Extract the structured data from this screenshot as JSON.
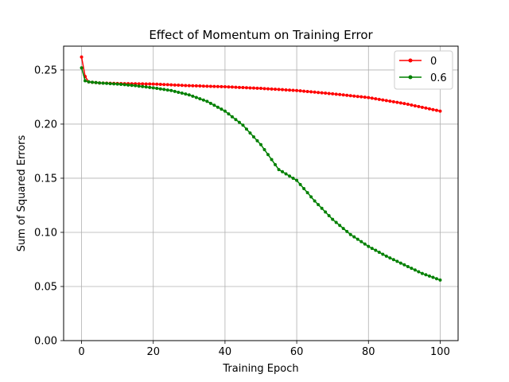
{
  "chart_data": {
    "type": "line",
    "title": "Effect of Momentum on Training Error",
    "xlabel": "Training Epoch",
    "ylabel": "Sum of Squared Errors",
    "xlim": [
      -5,
      105
    ],
    "ylim": [
      0.0,
      0.272
    ],
    "xticks": [
      0,
      20,
      40,
      60,
      80,
      100
    ],
    "xtick_labels": [
      "0",
      "20",
      "40",
      "60",
      "80",
      "100"
    ],
    "yticks": [
      0.0,
      0.05,
      0.1,
      0.15,
      0.2,
      0.25
    ],
    "ytick_labels": [
      "0.00",
      "0.05",
      "0.10",
      "0.15",
      "0.20",
      "0.25"
    ],
    "grid": true,
    "legend_position": "top-right",
    "series": [
      {
        "name": "0",
        "color": "#ff0000",
        "anchors": [
          [
            0,
            0.262
          ],
          [
            1,
            0.244
          ],
          [
            2,
            0.239
          ],
          [
            5,
            0.238
          ],
          [
            10,
            0.2375
          ],
          [
            20,
            0.237
          ],
          [
            30,
            0.2355
          ],
          [
            40,
            0.2345
          ],
          [
            50,
            0.233
          ],
          [
            60,
            0.231
          ],
          [
            70,
            0.228
          ],
          [
            80,
            0.2245
          ],
          [
            90,
            0.219
          ],
          [
            100,
            0.212
          ]
        ]
      },
      {
        "name": "0.6",
        "color": "#008000",
        "anchors": [
          [
            0,
            0.252
          ],
          [
            1,
            0.24
          ],
          [
            2,
            0.239
          ],
          [
            5,
            0.238
          ],
          [
            10,
            0.237
          ],
          [
            15,
            0.2355
          ],
          [
            20,
            0.2335
          ],
          [
            25,
            0.231
          ],
          [
            30,
            0.227
          ],
          [
            35,
            0.221
          ],
          [
            40,
            0.212
          ],
          [
            45,
            0.199
          ],
          [
            50,
            0.181
          ],
          [
            55,
            0.158
          ],
          [
            60,
            0.148
          ],
          [
            65,
            0.129
          ],
          [
            70,
            0.112
          ],
          [
            75,
            0.098
          ],
          [
            80,
            0.087
          ],
          [
            85,
            0.078
          ],
          [
            90,
            0.07
          ],
          [
            95,
            0.062
          ],
          [
            100,
            0.056
          ]
        ]
      }
    ]
  }
}
